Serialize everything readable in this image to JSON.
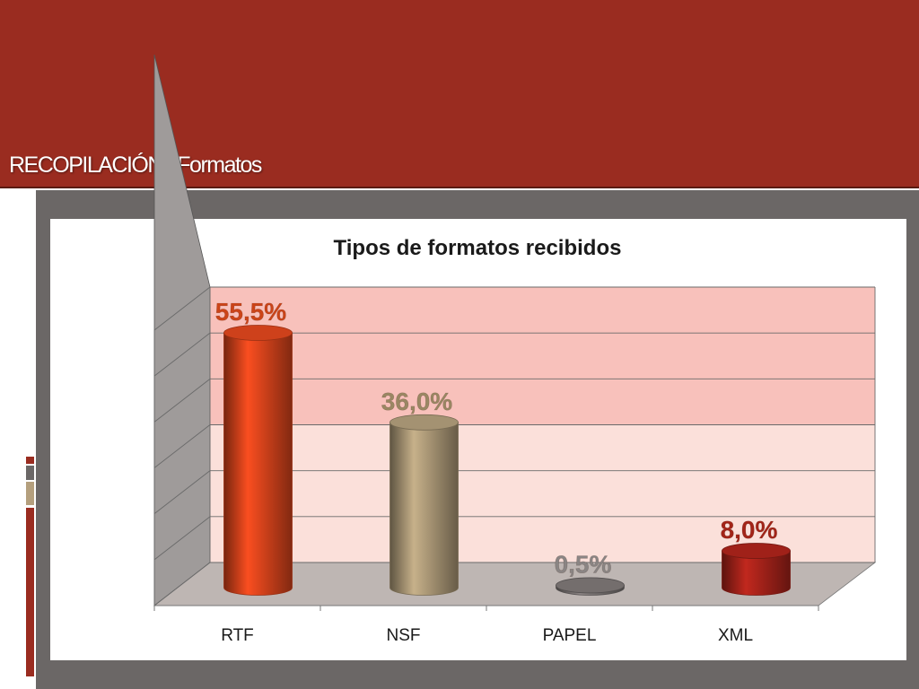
{
  "slide": {
    "title": "RECOPILACIÓN : Formatos"
  },
  "colors": {
    "header": "#9a2c20",
    "panel": "#6b6766",
    "accent_gray": "#7a7473",
    "accent_tan": "#b49f7d"
  },
  "chart_data": {
    "type": "bar",
    "title": "Tipos de formatos recibidos",
    "categories": [
      "RTF",
      "NSF",
      "PAPEL",
      "XML"
    ],
    "values": [
      55.5,
      36.0,
      0.5,
      8.0
    ],
    "data_labels": [
      "55,5%",
      "36,0%",
      "0,5%",
      "8,0%"
    ],
    "ylim": [
      0,
      60
    ],
    "grid": true,
    "style": "3d-cylinder",
    "bar_colors": [
      "#d9441c",
      "#ad9a78",
      "#7a7473",
      "#a8231a"
    ],
    "label_colors": [
      "#cc4418",
      "#9a8763",
      "#8a8584",
      "#a32418"
    ]
  }
}
